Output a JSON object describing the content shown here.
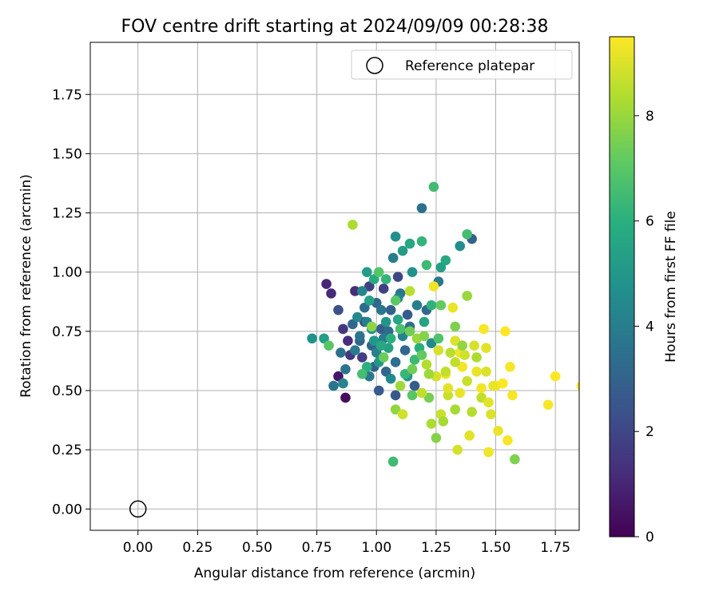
{
  "chart_data": {
    "type": "scatter",
    "title": "FOV centre drift starting at 2024/09/09 00:28:38",
    "xlabel": "Angular distance from reference (arcmin)",
    "ylabel": "Rotation from reference (arcmin)",
    "xlim": [
      -0.2,
      1.85
    ],
    "ylim": [
      -0.09,
      1.97
    ],
    "x_ticks": [
      "0.00",
      "0.25",
      "0.50",
      "0.75",
      "1.00",
      "1.25",
      "1.50",
      "1.75"
    ],
    "y_ticks": [
      "0.00",
      "0.25",
      "0.50",
      "0.75",
      "1.00",
      "1.25",
      "1.50",
      "1.75"
    ],
    "grid": true,
    "legend": {
      "position": "top-right",
      "entries": [
        "Reference platepar"
      ]
    },
    "reference_point": {
      "x": 0.0,
      "y": 0.0,
      "label": "Reference platepar"
    },
    "colorbar": {
      "label": "Hours from first FF file",
      "min": 0,
      "max": 9.5,
      "ticks": [
        "0",
        "2",
        "4",
        "6",
        "8"
      ],
      "colormap": "viridis"
    },
    "points": [
      [
        0.87,
        0.47,
        0.3
      ],
      [
        0.84,
        0.56,
        0.6
      ],
      [
        0.79,
        0.95,
        1.0
      ],
      [
        0.81,
        0.91,
        1.1
      ],
      [
        0.88,
        0.71,
        1.2
      ],
      [
        0.91,
        0.92,
        1.2
      ],
      [
        0.86,
        0.76,
        1.5
      ],
      [
        0.89,
        0.65,
        1.5
      ],
      [
        0.94,
        0.64,
        1.7
      ],
      [
        0.97,
        0.94,
        1.8
      ],
      [
        1.03,
        0.93,
        1.8
      ],
      [
        1.09,
        0.98,
        2.0
      ],
      [
        0.84,
        0.84,
        2.3
      ],
      [
        0.95,
        0.79,
        2.3
      ],
      [
        1.08,
        0.48,
        2.6
      ],
      [
        1.01,
        0.5,
        2.7
      ],
      [
        1.13,
        0.82,
        2.7
      ],
      [
        1.16,
        0.52,
        2.8
      ],
      [
        1.02,
        0.76,
        2.8
      ],
      [
        0.99,
        0.6,
        2.9
      ],
      [
        1.06,
        0.84,
        2.9
      ],
      [
        1.4,
        1.14,
        2.9
      ],
      [
        0.93,
        0.71,
        3.0
      ],
      [
        0.98,
        0.69,
        3.0
      ],
      [
        1.04,
        0.58,
        3.1
      ],
      [
        0.9,
        0.78,
        3.1
      ],
      [
        1.0,
        0.87,
        3.1
      ],
      [
        1.12,
        0.67,
        3.2
      ],
      [
        1.21,
        0.84,
        3.2
      ],
      [
        1.05,
        0.75,
        3.3
      ],
      [
        0.95,
        0.85,
        3.3
      ],
      [
        1.08,
        0.62,
        3.4
      ],
      [
        1.14,
        0.77,
        3.4
      ],
      [
        1.19,
        1.27,
        3.5
      ],
      [
        0.85,
        0.66,
        3.5
      ],
      [
        0.87,
        0.59,
        3.6
      ],
      [
        0.82,
        0.52,
        3.6
      ],
      [
        0.93,
        0.73,
        3.6
      ],
      [
        1.02,
        0.84,
        3.7
      ],
      [
        1.1,
        0.91,
        3.7
      ],
      [
        1.26,
        0.96,
        3.8
      ],
      [
        0.97,
        0.56,
        3.8
      ],
      [
        0.91,
        0.67,
        3.9
      ],
      [
        1.03,
        0.72,
        3.9
      ],
      [
        1.17,
        0.86,
        4.0
      ],
      [
        1.07,
        1.06,
        4.0
      ],
      [
        0.96,
        0.79,
        4.1
      ],
      [
        1.0,
        0.66,
        4.1
      ],
      [
        1.11,
        0.73,
        4.2
      ],
      [
        0.94,
        0.92,
        4.3
      ],
      [
        0.86,
        0.53,
        4.3
      ],
      [
        0.92,
        0.81,
        4.4
      ],
      [
        1.09,
        0.89,
        4.4
      ],
      [
        1.23,
        0.7,
        4.5
      ],
      [
        1.06,
        0.55,
        4.5
      ],
      [
        0.98,
        0.76,
        4.6
      ],
      [
        1.35,
        1.11,
        4.6
      ],
      [
        1.08,
        1.15,
        4.7
      ],
      [
        0.73,
        0.72,
        4.8
      ],
      [
        1.15,
        1.0,
        4.8
      ],
      [
        1.04,
        0.79,
        4.9
      ],
      [
        0.99,
        0.71,
        5.0
      ],
      [
        1.01,
        0.62,
        5.0
      ],
      [
        1.13,
        0.56,
        5.1
      ],
      [
        0.96,
        1.0,
        5.2
      ],
      [
        1.11,
        1.09,
        5.2
      ],
      [
        0.78,
        0.72,
        5.3
      ],
      [
        1.27,
        1.02,
        5.3
      ],
      [
        1.05,
        0.68,
        5.4
      ],
      [
        0.97,
        0.88,
        5.5
      ],
      [
        1.2,
        0.79,
        5.5
      ],
      [
        1.14,
        1.12,
        5.6
      ],
      [
        1.09,
        0.8,
        5.6
      ],
      [
        1.02,
        0.69,
        5.7
      ],
      [
        1.29,
        1.05,
        5.7
      ],
      [
        0.99,
        0.97,
        5.8
      ],
      [
        1.18,
        0.68,
        5.9
      ],
      [
        0.96,
        0.6,
        6.0
      ],
      [
        1.06,
        0.72,
        6.0
      ],
      [
        1.23,
        0.86,
        6.1
      ],
      [
        1.04,
        0.97,
        6.2
      ],
      [
        1.19,
        1.13,
        6.2
      ],
      [
        1.12,
        0.57,
        6.3
      ],
      [
        1.16,
        0.63,
        6.4
      ],
      [
        1.21,
        1.03,
        6.4
      ],
      [
        1.24,
        1.36,
        6.5
      ],
      [
        1.07,
        0.2,
        6.5
      ],
      [
        0.94,
        0.57,
        6.6
      ],
      [
        1.38,
        1.16,
        6.6
      ],
      [
        1.1,
        0.76,
        6.7
      ],
      [
        1.26,
        0.72,
        6.8
      ],
      [
        1.01,
        1.0,
        6.9
      ],
      [
        1.15,
        0.48,
        7.0
      ],
      [
        0.8,
        0.69,
        7.0
      ],
      [
        1.08,
        0.88,
        7.1
      ],
      [
        1.27,
        0.86,
        7.2
      ],
      [
        1.19,
        0.65,
        7.2
      ],
      [
        1.03,
        0.64,
        7.3
      ],
      [
        1.14,
        0.75,
        7.4
      ],
      [
        1.22,
        0.47,
        7.5
      ],
      [
        1.33,
        0.77,
        7.6
      ],
      [
        1.58,
        0.21,
        7.6
      ],
      [
        1.25,
        0.3,
        7.7
      ],
      [
        0.98,
        0.77,
        7.8
      ],
      [
        1.08,
        0.42,
        7.9
      ],
      [
        1.17,
        0.72,
        8.0
      ],
      [
        1.38,
        0.9,
        8.0
      ],
      [
        1.1,
        0.52,
        8.1
      ],
      [
        1.33,
        0.42,
        8.2
      ],
      [
        1.23,
        0.36,
        8.3
      ],
      [
        0.9,
        1.2,
        8.3
      ],
      [
        1.4,
        0.41,
        8.4
      ],
      [
        1.14,
        0.92,
        8.5
      ],
      [
        1.44,
        0.47,
        8.6
      ],
      [
        1.19,
        0.49,
        8.6
      ],
      [
        1.3,
        0.48,
        8.7
      ],
      [
        1.11,
        0.4,
        8.8
      ],
      [
        1.34,
        0.25,
        8.9
      ],
      [
        1.26,
        0.67,
        8.9
      ],
      [
        1.48,
        0.4,
        9.0
      ],
      [
        1.39,
        0.31,
        9.1
      ],
      [
        1.46,
        0.68,
        9.1
      ],
      [
        1.51,
        0.33,
        9.2
      ],
      [
        1.29,
        0.57,
        9.3
      ],
      [
        1.35,
        0.66,
        9.3
      ],
      [
        1.47,
        0.24,
        9.3
      ],
      [
        1.55,
        0.29,
        9.4
      ],
      [
        1.57,
        0.48,
        9.4
      ],
      [
        1.72,
        0.44,
        9.4
      ],
      [
        1.75,
        0.56,
        9.5
      ],
      [
        1.86,
        0.52,
        9.5
      ],
      [
        1.53,
        0.53,
        9.5
      ],
      [
        1.45,
        0.76,
        9.4
      ],
      [
        1.54,
        0.75,
        9.5
      ],
      [
        1.56,
        0.6,
        9.4
      ],
      [
        1.32,
        0.85,
        9.2
      ],
      [
        1.3,
        0.51,
        9.1
      ],
      [
        1.36,
        0.6,
        9.3
      ],
      [
        1.42,
        0.58,
        9.2
      ],
      [
        1.41,
        0.69,
        8.9
      ],
      [
        1.33,
        0.71,
        9.0
      ],
      [
        1.24,
        0.94,
        9.3
      ],
      [
        1.29,
        0.58,
        8.6
      ],
      [
        1.37,
        0.65,
        8.8
      ],
      [
        1.27,
        0.4,
        8.7
      ],
      [
        1.5,
        0.52,
        9.4
      ],
      [
        1.46,
        0.58,
        9.0
      ],
      [
        1.35,
        0.49,
        9.2
      ],
      [
        1.44,
        0.51,
        9.3
      ],
      [
        1.31,
        0.66,
        8.5
      ],
      [
        1.21,
        0.61,
        8.4
      ],
      [
        1.25,
        0.56,
        8.9
      ],
      [
        1.28,
        0.37,
        8.2
      ],
      [
        1.47,
        0.45,
        9.1
      ],
      [
        1.38,
        0.54,
        8.7
      ],
      [
        1.42,
        0.64,
        8.3
      ],
      [
        1.36,
        0.69,
        7.9
      ],
      [
        1.22,
        0.57,
        8.1
      ],
      [
        1.2,
        0.73,
        7.7
      ],
      [
        1.15,
        0.59,
        7.4
      ],
      [
        1.33,
        0.62,
        8.6
      ],
      [
        1.49,
        0.52,
        9.2
      ]
    ]
  }
}
